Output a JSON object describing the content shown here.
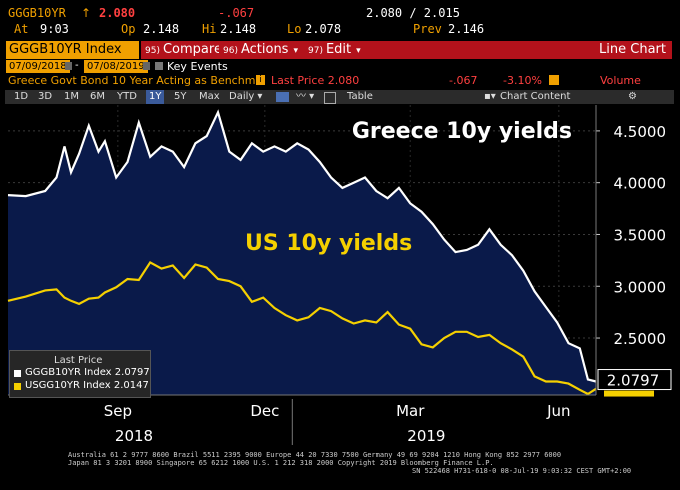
{
  "header": {
    "ticker": "GGGB10YR",
    "arrow": "↑",
    "last": "2.080",
    "change": "-.067",
    "bid_ask": "2.080 / 2.015",
    "at_label": "At",
    "at_time": "9:03",
    "open_label": "Op",
    "open": "2.148",
    "hi_label": "Hi",
    "hi": "2.148",
    "lo_label": "Lo",
    "lo": "2.078",
    "prev_label": "Prev",
    "prev": "2.146"
  },
  "function_bar": {
    "security": "GGGB10YR Index",
    "compare_num": "95)",
    "compare": "Compare",
    "actions_num": "96)",
    "actions": "Actions",
    "edit_num": "97)",
    "edit": "Edit",
    "view": "Line Chart"
  },
  "date_range": {
    "start": "07/09/2018",
    "end": "07/08/2019",
    "key_events": "Key Events"
  },
  "info_row": {
    "description": "Greece Govt Bond 10 Year Acting as Benchm...",
    "last_price": "Last Price 2.080",
    "change": "-.067",
    "pct": "-3.10%",
    "volume": "Volume"
  },
  "toolbar": {
    "periods": [
      "1D",
      "3D",
      "1M",
      "6M",
      "YTD",
      "1Y",
      "5Y",
      "Max"
    ],
    "active_period": "1Y",
    "frequency": "Daily",
    "table": "Table",
    "chart_content": "Chart Content"
  },
  "colors": {
    "greece": "#ffffff",
    "us": "#f5d000",
    "area": "#0a1a4a",
    "bloomberg_amber": "#f0a000",
    "bloomberg_red": "#b3121b"
  },
  "chart_data": {
    "type": "line",
    "annotations": [
      "Greece 10y yields",
      "US 10y yields"
    ],
    "ylim": [
      1.95,
      4.75
    ],
    "yticks": [
      "4.5000",
      "4.0000",
      "3.5000",
      "3.0000",
      "2.5000"
    ],
    "ytick_values": [
      4.5,
      4.0,
      3.5,
      3.0,
      2.5
    ],
    "xlabels_month": [
      "Sep",
      "Dec",
      "Mar",
      "Jun"
    ],
    "xlabels_year": [
      "2018",
      "2019"
    ],
    "last_value_label": "2.0797",
    "x_start": "2018-07-09",
    "x_end": "2019-07-08",
    "series": [
      {
        "name": "GGGB10YR Index",
        "dates": [
          "2018-07-09",
          "2018-07-20",
          "2018-08-01",
          "2018-08-08",
          "2018-08-13",
          "2018-08-17",
          "2018-08-22",
          "2018-08-28",
          "2018-09-03",
          "2018-09-07",
          "2018-09-14",
          "2018-09-21",
          "2018-09-28",
          "2018-10-05",
          "2018-10-12",
          "2018-10-19",
          "2018-10-26",
          "2018-11-02",
          "2018-11-09",
          "2018-11-16",
          "2018-11-23",
          "2018-11-30",
          "2018-12-07",
          "2018-12-14",
          "2018-12-21",
          "2018-12-28",
          "2019-01-04",
          "2019-01-11",
          "2019-01-18",
          "2019-01-25",
          "2019-02-01",
          "2019-02-08",
          "2019-02-15",
          "2019-02-22",
          "2019-03-01",
          "2019-03-08",
          "2019-03-15",
          "2019-03-22",
          "2019-03-29",
          "2019-04-05",
          "2019-04-12",
          "2019-04-19",
          "2019-04-26",
          "2019-05-03",
          "2019-05-10",
          "2019-05-17",
          "2019-05-24",
          "2019-05-31",
          "2019-06-07",
          "2019-06-14",
          "2019-06-21",
          "2019-06-28",
          "2019-07-03",
          "2019-07-08"
        ],
        "values": [
          3.88,
          3.87,
          3.92,
          4.05,
          4.35,
          4.1,
          4.28,
          4.55,
          4.3,
          4.4,
          4.05,
          4.2,
          4.58,
          4.25,
          4.35,
          4.3,
          4.15,
          4.38,
          4.45,
          4.68,
          4.3,
          4.22,
          4.38,
          4.3,
          4.35,
          4.3,
          4.38,
          4.32,
          4.2,
          4.05,
          3.95,
          4.0,
          4.05,
          3.92,
          3.85,
          3.95,
          3.8,
          3.72,
          3.6,
          3.45,
          3.33,
          3.35,
          3.4,
          3.55,
          3.4,
          3.3,
          3.15,
          2.95,
          2.8,
          2.65,
          2.45,
          2.4,
          2.1,
          2.08
        ]
      },
      {
        "name": "USGG10YR Index",
        "dates": [
          "2018-07-09",
          "2018-07-20",
          "2018-08-01",
          "2018-08-08",
          "2018-08-13",
          "2018-08-17",
          "2018-08-22",
          "2018-08-28",
          "2018-09-03",
          "2018-09-07",
          "2018-09-14",
          "2018-09-21",
          "2018-09-28",
          "2018-10-05",
          "2018-10-12",
          "2018-10-19",
          "2018-10-26",
          "2018-11-02",
          "2018-11-09",
          "2018-11-16",
          "2018-11-23",
          "2018-11-30",
          "2018-12-07",
          "2018-12-14",
          "2018-12-21",
          "2018-12-28",
          "2019-01-04",
          "2019-01-11",
          "2019-01-18",
          "2019-01-25",
          "2019-02-01",
          "2019-02-08",
          "2019-02-15",
          "2019-02-22",
          "2019-03-01",
          "2019-03-08",
          "2019-03-15",
          "2019-03-22",
          "2019-03-29",
          "2019-04-05",
          "2019-04-12",
          "2019-04-19",
          "2019-04-26",
          "2019-05-03",
          "2019-05-10",
          "2019-05-17",
          "2019-05-24",
          "2019-05-31",
          "2019-06-07",
          "2019-06-14",
          "2019-06-21",
          "2019-06-28",
          "2019-07-03",
          "2019-07-08"
        ],
        "values": [
          2.86,
          2.9,
          2.96,
          2.97,
          2.89,
          2.86,
          2.83,
          2.88,
          2.89,
          2.94,
          2.99,
          3.07,
          3.06,
          3.23,
          3.17,
          3.2,
          3.08,
          3.21,
          3.18,
          3.07,
          3.05,
          3.0,
          2.85,
          2.89,
          2.79,
          2.72,
          2.67,
          2.7,
          2.79,
          2.76,
          2.69,
          2.64,
          2.67,
          2.65,
          2.75,
          2.63,
          2.59,
          2.44,
          2.41,
          2.5,
          2.56,
          2.56,
          2.51,
          2.53,
          2.45,
          2.39,
          2.32,
          2.13,
          2.08,
          2.08,
          2.06,
          2.0,
          1.96,
          2.01
        ]
      }
    ]
  },
  "legend": {
    "title": "Last Price",
    "items": [
      "GGGB10YR Index 2.0797",
      "USGG10YR Index 2.0147"
    ]
  },
  "footer": {
    "line1": "Australia 61 2 9777 8600 Brazil 5511 2395 9000 Europe 44 20 7330 7500 Germany 49 69 9204 1210 Hong Kong 852 2977 6000",
    "line2": "Japan 81 3 3201 8900       Singapore 65 6212 1000       U.S. 1 212 318 2000             Copyright 2019 Bloomberg Finance L.P.",
    "line3": "SN 522468 H731-618-0 08-Jul-19  9:03:32 CEST GMT+2:00"
  }
}
